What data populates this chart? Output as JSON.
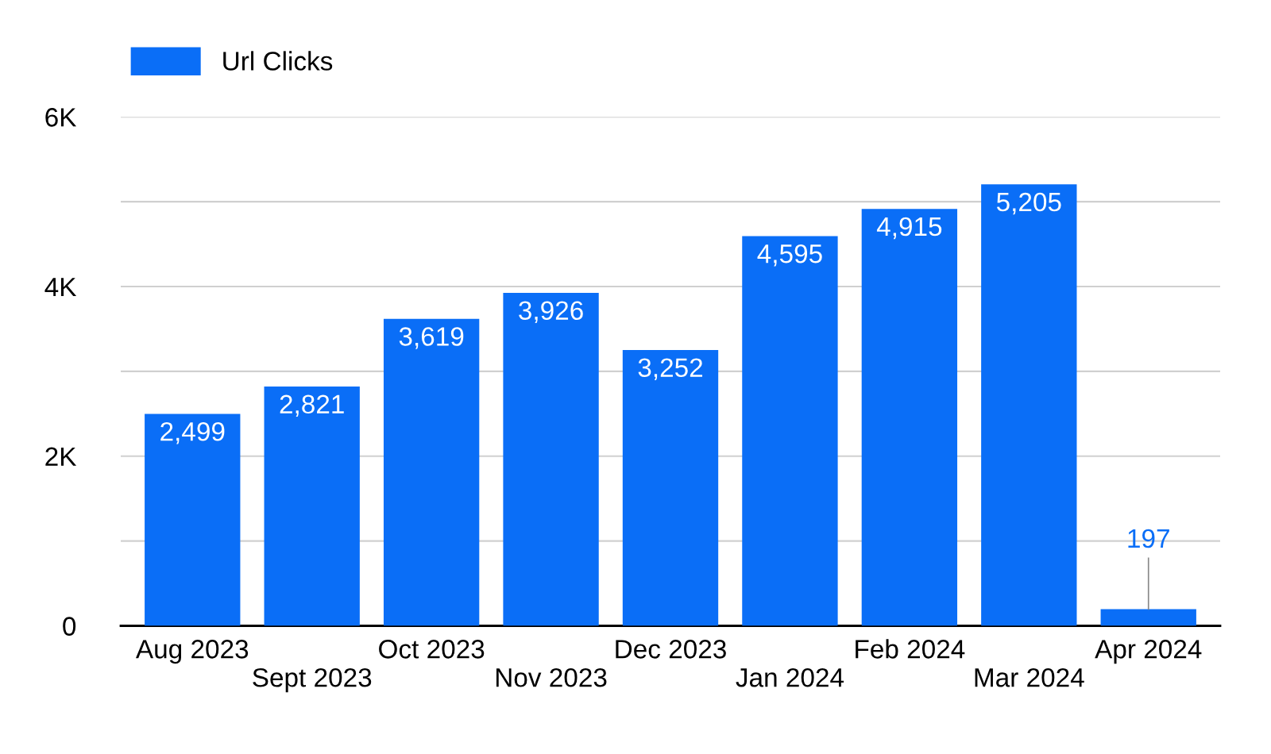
{
  "chart_data": {
    "type": "bar",
    "categories": [
      "Aug 2023",
      "Sept 2023",
      "Oct 2023",
      "Nov 2023",
      "Dec 2023",
      "Jan 2024",
      "Feb 2024",
      "Mar 2024",
      "Apr 2024"
    ],
    "series": [
      {
        "name": "Url Clicks",
        "color": "#0a6ef7",
        "values": [
          2499,
          2821,
          3619,
          3926,
          3252,
          4595,
          4915,
          5205,
          197
        ]
      }
    ],
    "value_labels": [
      "2,499",
      "2,821",
      "3,619",
      "3,926",
      "3,252",
      "4,595",
      "4,915",
      "5,205",
      "197"
    ],
    "ylim": [
      0,
      6000
    ],
    "yticks": [
      {
        "value": 0,
        "label": "0"
      },
      {
        "value": 1000,
        "label": null
      },
      {
        "value": 2000,
        "label": "2K"
      },
      {
        "value": 3000,
        "label": null
      },
      {
        "value": 4000,
        "label": "4K"
      },
      {
        "value": 5000,
        "label": null
      },
      {
        "value": 6000,
        "label": "6K"
      }
    ],
    "grid": "y",
    "legend": "top left"
  }
}
